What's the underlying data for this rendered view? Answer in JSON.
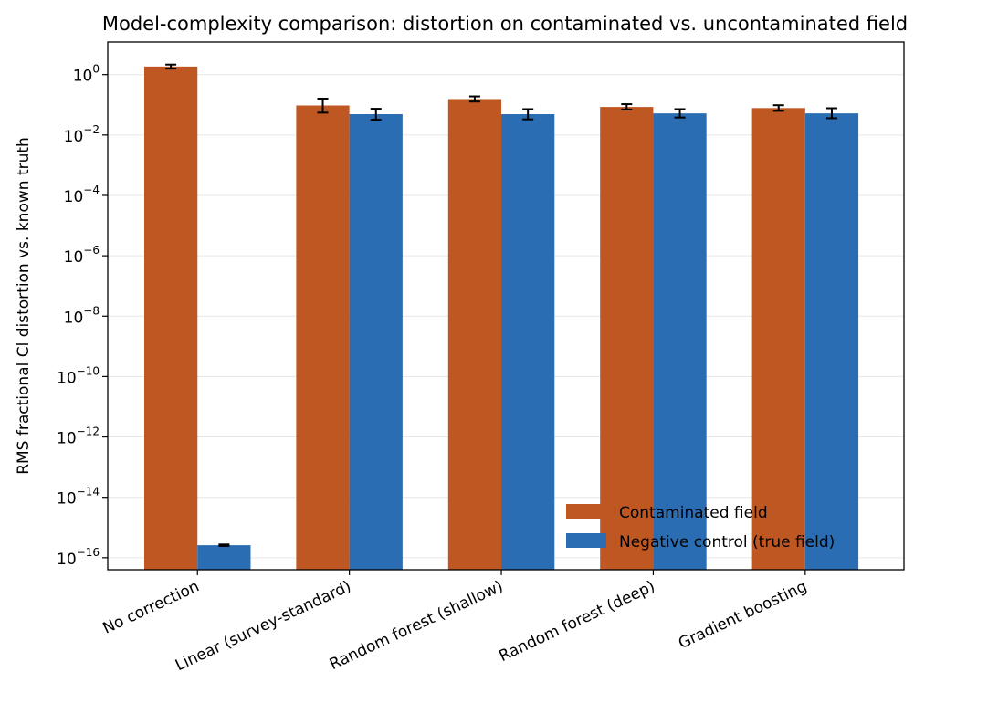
{
  "chart_data": {
    "type": "bar",
    "title": "Model-complexity comparison: distortion on contaminated vs. uncontaminated field",
    "xlabel": "",
    "ylabel": "RMS fractional Cl distortion vs. known truth",
    "yscale": "log",
    "ylim": [
      4e-17,
      12
    ],
    "yticks": [
      {
        "base": "10",
        "exp": "0",
        "value": 1
      },
      {
        "base": "10",
        "exp": "−2",
        "value": 0.01
      },
      {
        "base": "10",
        "exp": "−4",
        "value": 0.0001
      },
      {
        "base": "10",
        "exp": "−6",
        "value": 1e-06
      },
      {
        "base": "10",
        "exp": "−8",
        "value": 1e-08
      },
      {
        "base": "10",
        "exp": "−10",
        "value": 1e-10
      },
      {
        "base": "10",
        "exp": "−12",
        "value": 1e-12
      },
      {
        "base": "10",
        "exp": "−14",
        "value": 1e-14
      },
      {
        "base": "10",
        "exp": "−16",
        "value": 1e-16
      }
    ],
    "grid": "horizontal",
    "legend_position": "lower-right",
    "categories": [
      "No correction",
      "Linear (survey-standard)",
      "Random forest (shallow)",
      "Random forest (deep)",
      "Gradient boosting"
    ],
    "series": [
      {
        "name": "Contaminated field",
        "color": "#bf5722",
        "values": [
          1.85,
          0.095,
          0.155,
          0.085,
          0.078
        ],
        "err_low": [
          1.58,
          0.055,
          0.128,
          0.07,
          0.063
        ],
        "err_high": [
          2.15,
          0.16,
          0.19,
          0.105,
          0.097
        ]
      },
      {
        "name": "Negative control (true field)",
        "color": "#2b6db2",
        "values": [
          2.6e-16,
          0.049,
          0.049,
          0.052,
          0.052
        ],
        "err_low": [
          2.45e-16,
          0.032,
          0.033,
          0.038,
          0.036
        ],
        "err_high": [
          2.75e-16,
          0.074,
          0.072,
          0.072,
          0.077
        ]
      }
    ]
  }
}
